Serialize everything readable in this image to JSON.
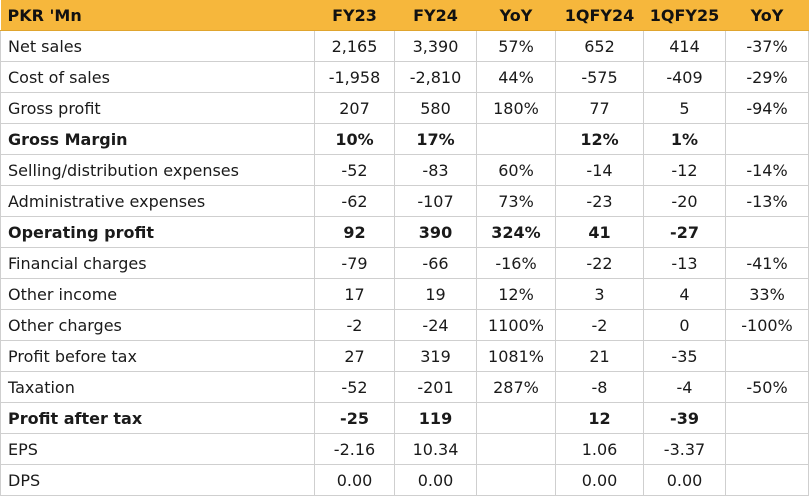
{
  "header": {
    "label": "PKR 'Mn",
    "columns": [
      "FY23",
      "FY24",
      "YoY",
      "1QFY24",
      "1QFY25",
      "YoY"
    ]
  },
  "rows": [
    {
      "label": "Net sales",
      "bold": false,
      "values": [
        "2,165",
        "3,390",
        "57%",
        "652",
        "414",
        "-37%"
      ]
    },
    {
      "label": "Cost of sales",
      "bold": false,
      "values": [
        "-1,958",
        "-2,810",
        "44%",
        "-575",
        "-409",
        "-29%"
      ]
    },
    {
      "label": "Gross profit",
      "bold": false,
      "values": [
        "207",
        "580",
        "180%",
        "77",
        "5",
        "-94%"
      ]
    },
    {
      "label": "Gross Margin",
      "bold": true,
      "values": [
        "10%",
        "17%",
        "",
        "12%",
        "1%",
        ""
      ]
    },
    {
      "label": "Selling/distribution  expenses",
      "bold": false,
      "values": [
        "-52",
        "-83",
        "60%",
        "-14",
        "-12",
        "-14%"
      ]
    },
    {
      "label": "Administrative expenses",
      "bold": false,
      "values": [
        "-62",
        "-107",
        "73%",
        "-23",
        "-20",
        "-13%"
      ]
    },
    {
      "label": "Operating  profit",
      "bold": true,
      "values": [
        "92",
        "390",
        "324%",
        "41",
        "-27",
        ""
      ]
    },
    {
      "label": "Financial charges",
      "bold": false,
      "values": [
        "-79",
        "-66",
        "-16%",
        "-22",
        "-13",
        "-41%"
      ]
    },
    {
      "label": "Other income",
      "bold": false,
      "values": [
        "17",
        "19",
        "12%",
        "3",
        "4",
        "33%"
      ]
    },
    {
      "label": "Other charges",
      "bold": false,
      "values": [
        "-2",
        "-24",
        "1100%",
        "-2",
        "0",
        "-100%"
      ]
    },
    {
      "label": "Profit before tax",
      "bold": false,
      "values": [
        "27",
        "319",
        "1081%",
        "21",
        "-35",
        ""
      ]
    },
    {
      "label": "Taxation",
      "bold": false,
      "values": [
        "-52",
        "-201",
        "287%",
        "-8",
        "-4",
        "-50%"
      ]
    },
    {
      "label": "Profit after tax",
      "bold": true,
      "values": [
        "-25",
        "119",
        "",
        "12",
        "-39",
        ""
      ]
    },
    {
      "label": "EPS",
      "bold": false,
      "values": [
        "-2.16",
        "10.34",
        "",
        "1.06",
        "-3.37",
        ""
      ]
    },
    {
      "label": "DPS",
      "bold": false,
      "values": [
        "0.00",
        "0.00",
        "",
        "0.00",
        "0.00",
        ""
      ]
    }
  ],
  "colors": {
    "header_background": "#f6b73c",
    "grid_line": "#cfcfcf"
  }
}
